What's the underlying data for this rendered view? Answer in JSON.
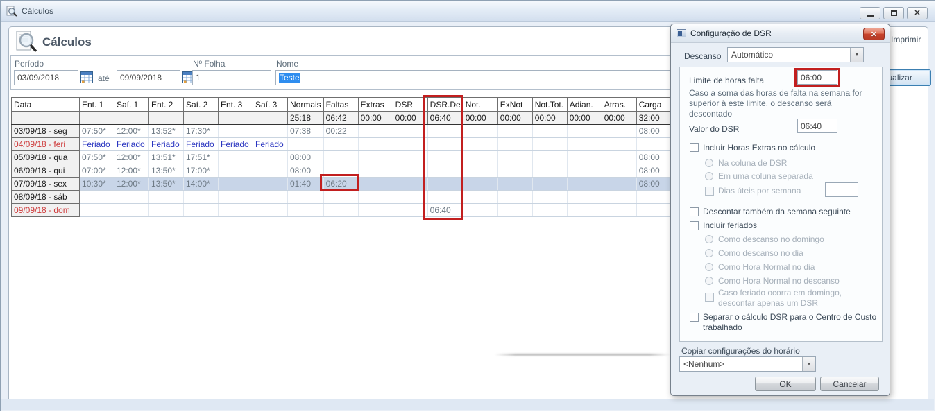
{
  "window": {
    "title": "Cálculos",
    "controls": {
      "minimize": "minimize",
      "restore": "restore",
      "close_glyph": "✕"
    }
  },
  "header": {
    "title": "Cálculos"
  },
  "toolbar": {
    "imprimir": "Imprimir",
    "atualizar": "Atualizar"
  },
  "filters": {
    "periodo_label": "Período",
    "periodo_from": "03/09/2018",
    "ate_label": "até",
    "periodo_to": "09/09/2018",
    "folha_label": "Nº Folha",
    "folha_value": "1",
    "nome_label": "Nome",
    "nome_value": "Teste"
  },
  "table": {
    "columns": [
      "Data",
      "Ent. 1",
      "Saí. 1",
      "Ent. 2",
      "Saí. 2",
      "Ent. 3",
      "Saí. 3",
      "Normais",
      "Faltas",
      "Extras",
      "DSR",
      "DSR.De",
      "Not.",
      "ExNot",
      "Not.Tot.",
      "Adian.",
      "Atras.",
      "Carga"
    ],
    "totals": [
      "",
      "",
      "",
      "",
      "",
      "",
      "",
      "25:18",
      "06:42",
      "00:00",
      "00:00",
      "06:40",
      "00:00",
      "00:00",
      "00:00",
      "00:00",
      "00:00",
      "32:00"
    ],
    "rows": [
      {
        "data": "03/09/18 - seg",
        "type": "normal",
        "cells": [
          "07:50*",
          "12:00*",
          "13:52*",
          "17:30*",
          "",
          "",
          "07:38",
          "00:22",
          "",
          "",
          "",
          "",
          "",
          "",
          "",
          "",
          "08:00"
        ]
      },
      {
        "data": "04/09/18 - feri",
        "type": "holiday",
        "cells": [
          "Feriado",
          "Feriado",
          "Feriado",
          "Feriado",
          "Feriado",
          "Feriado",
          "",
          "",
          "",
          "",
          "",
          "",
          "",
          "",
          "",
          "",
          ""
        ]
      },
      {
        "data": "05/09/18 - qua",
        "type": "normal",
        "cells": [
          "07:50*",
          "12:00*",
          "13:51*",
          "17:51*",
          "",
          "",
          "08:00",
          "",
          "",
          "",
          "",
          "",
          "",
          "",
          "",
          "",
          "08:00"
        ]
      },
      {
        "data": "06/09/18 - qui",
        "type": "normal",
        "cells": [
          "07:00*",
          "12:00*",
          "13:50*",
          "17:00*",
          "",
          "",
          "08:00",
          "",
          "",
          "",
          "",
          "",
          "",
          "",
          "",
          "",
          "08:00"
        ]
      },
      {
        "data": "07/09/18 - sex",
        "type": "selected",
        "cells": [
          "10:30*",
          "12:00*",
          "13:50*",
          "14:00*",
          "",
          "",
          "01:40",
          "06:20",
          "",
          "",
          "",
          "",
          "",
          "",
          "",
          "",
          "08:00"
        ]
      },
      {
        "data": "08/09/18 - sáb",
        "type": "normal",
        "cells": [
          "",
          "",
          "",
          "",
          "",
          "",
          "",
          "",
          "",
          "",
          "",
          "",
          "",
          "",
          "",
          "",
          ""
        ]
      },
      {
        "data": "09/09/18 - dom",
        "type": "sunday",
        "cells": [
          "",
          "",
          "",
          "",
          "",
          "",
          "",
          "",
          "",
          "",
          "06:40",
          "",
          "",
          "",
          "",
          "",
          ""
        ]
      }
    ]
  },
  "dialog": {
    "title": "Configuração de DSR",
    "descanso_label": "Descanso",
    "descanso_value": "Automático",
    "limite_label": "Limite de horas falta",
    "limite_value": "06:00",
    "limite_help": "Caso a soma das horas de falta na semana for superior à este limite, o descanso será descontado",
    "valor_label": "Valor do DSR",
    "valor_value": "06:40",
    "chk_incluir_extras": "Incluir Horas Extras no cálculo",
    "radio_na_coluna": "Na coluna de DSR",
    "radio_coluna_separada": "Em uma coluna separada",
    "chk_dias_uteis": "Dias úteis por semana",
    "dias_uteis_value": "",
    "chk_descontar_seguinte": "Descontar também da semana seguinte",
    "chk_incluir_feriados": "Incluir feriados",
    "radio_descanso_domingo": "Como descanso no domingo",
    "radio_descanso_dia": "Como descanso no dia",
    "radio_normal_dia": "Como Hora Normal no dia",
    "radio_normal_descanso": "Como Hora Normal no descanso",
    "chk_feriado_domingo": "Caso feriado ocorra em domingo, descontar apenas um DSR",
    "chk_separar_centro": "Separar o cálculo DSR para o Centro de Custo trabalhado",
    "copiar_label": "Copiar configurações do horário",
    "copiar_value": "<Nenhum>",
    "ok_label": "OK",
    "cancel_label": "Cancelar"
  },
  "icons": {
    "dropdown_arrow": "▼"
  },
  "colors": {
    "highlight_red": "#c21f1f",
    "selection_blue": "#2e8def",
    "holiday_text": "#2a35c0",
    "sunday_red": "#cf3d3d",
    "selected_row": "#c8d5e8"
  }
}
